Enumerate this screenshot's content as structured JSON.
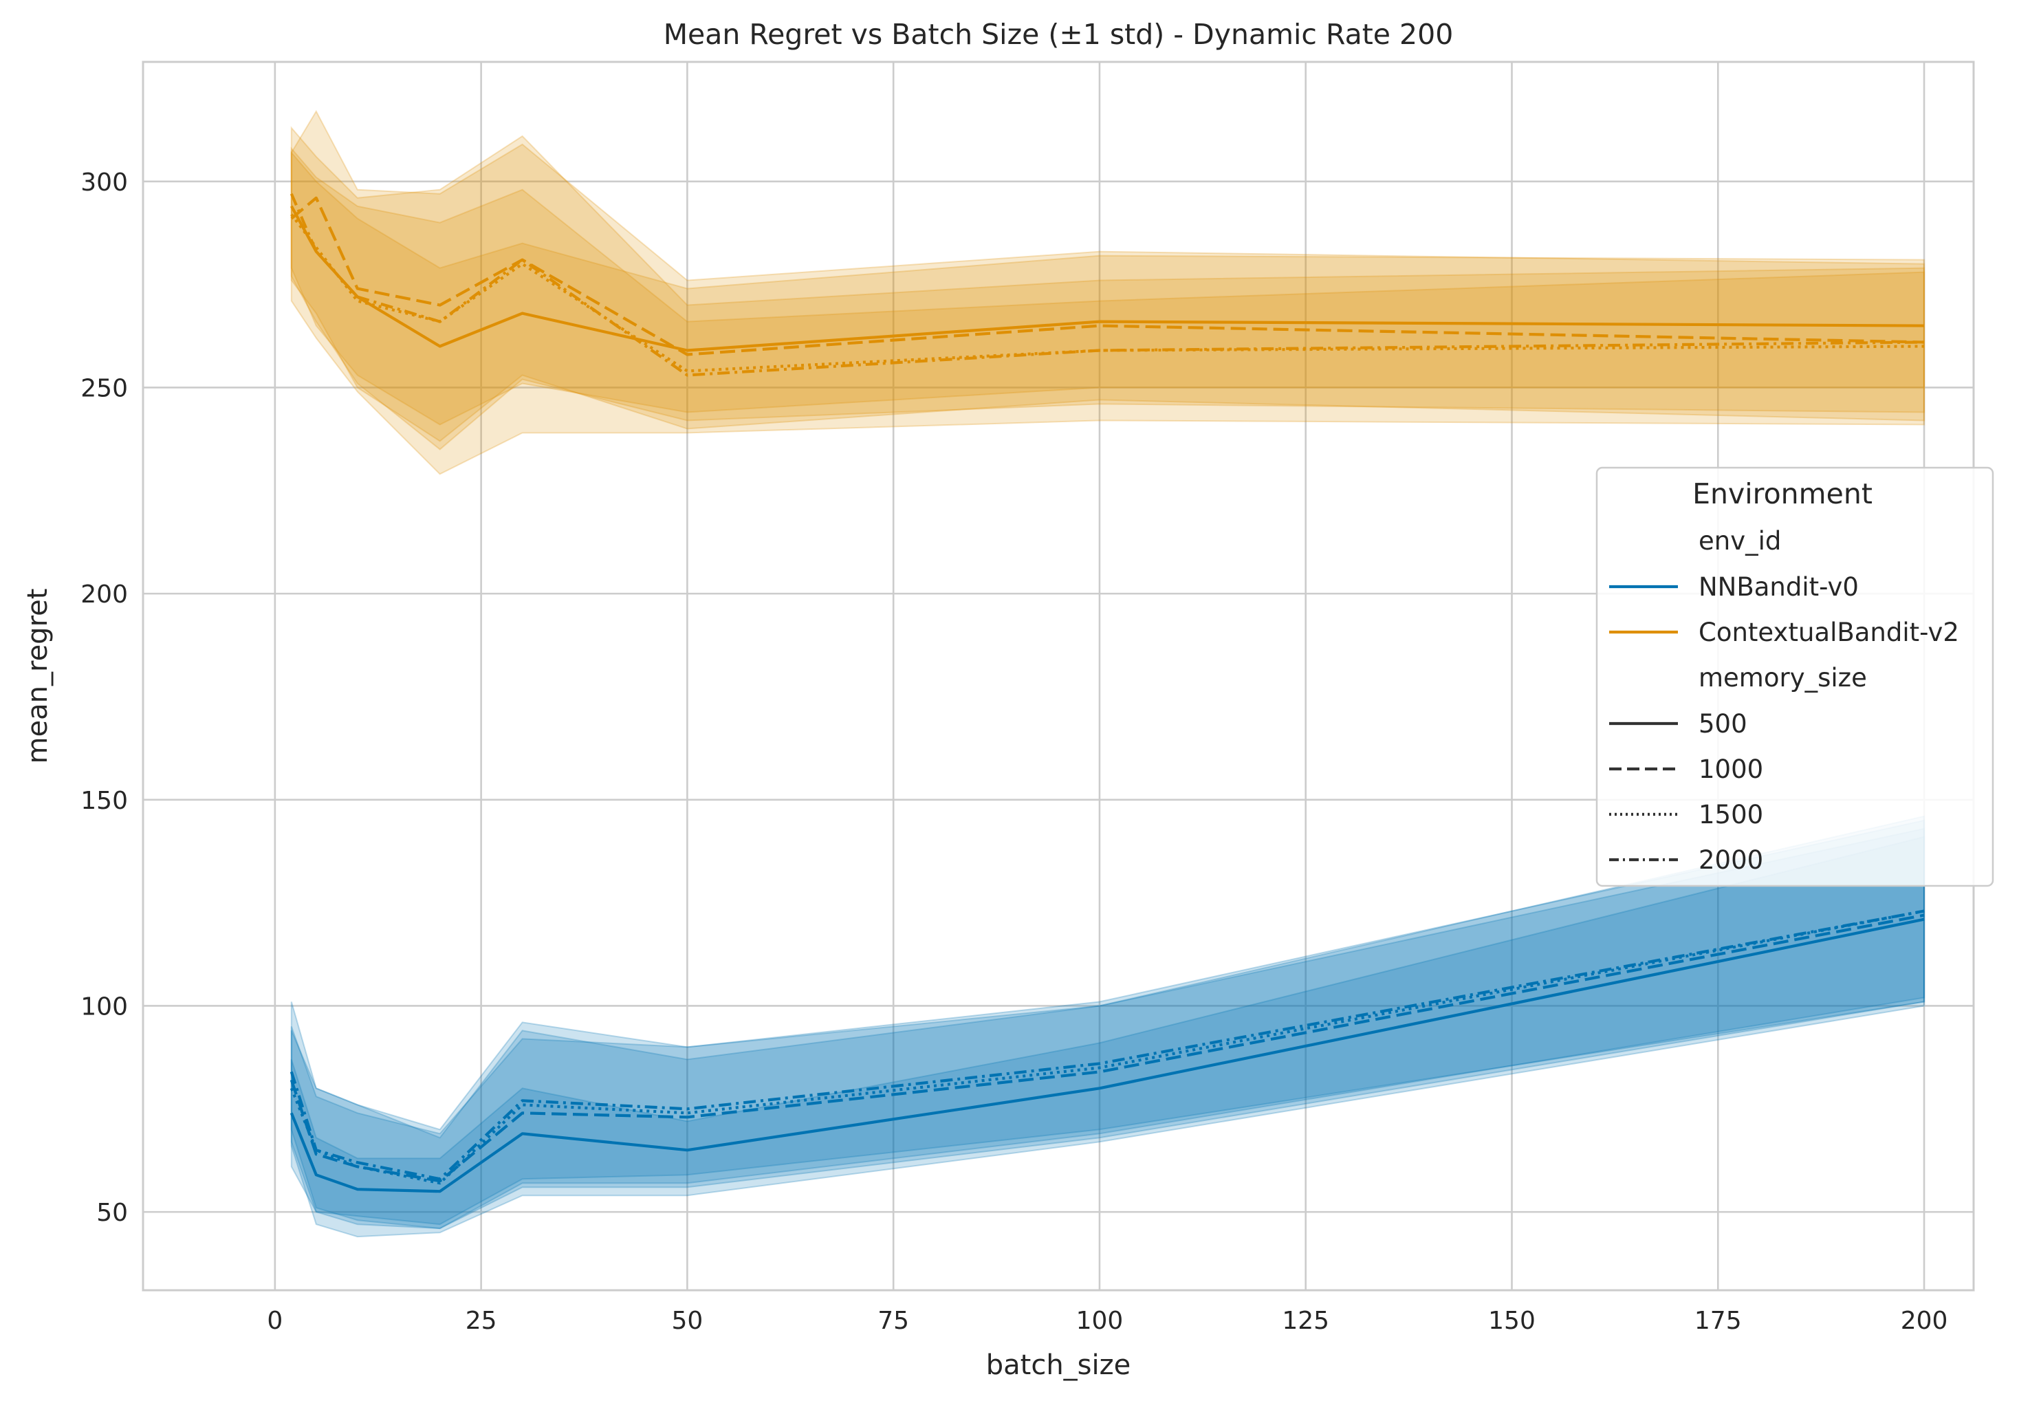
{
  "chart_data": {
    "type": "line",
    "title": "Mean Regret vs Batch Size (±1 std) - Dynamic Rate 200",
    "xlabel": "batch_size",
    "ylabel": "mean_regret",
    "xlim": [
      -16,
      206
    ],
    "ylim": [
      31,
      329
    ],
    "xticks": [
      0,
      25,
      50,
      75,
      100,
      125,
      150,
      175,
      200
    ],
    "yticks": [
      50,
      100,
      150,
      200,
      250,
      300
    ],
    "x": [
      2,
      5,
      10,
      20,
      30,
      50,
      100,
      200
    ],
    "grid": true,
    "legend": {
      "placement": "center-right",
      "title": "Environment",
      "hue_header": "env_id",
      "style_header": "memory_size",
      "hue_entries": [
        {
          "label": "NNBandit-v0",
          "color": "#0173b2"
        },
        {
          "label": "ContextualBandit-v2",
          "color": "#de8f05"
        }
      ],
      "style_entries": [
        {
          "label": "500",
          "dash": "solid"
        },
        {
          "label": "1000",
          "dash": "dashed"
        },
        {
          "label": "1500",
          "dash": "dotted"
        },
        {
          "label": "2000",
          "dash": "dashdot"
        }
      ]
    },
    "series": [
      {
        "env": "NNBandit-v0",
        "memory_size": "500",
        "color": "#0173b2",
        "dash": "solid",
        "values": [
          74,
          59,
          55.5,
          55,
          69,
          65,
          80,
          121
        ],
        "lower": [
          61,
          50,
          49,
          47,
          58,
          59,
          70,
          101
        ],
        "upper": [
          87,
          68,
          63,
          63,
          80,
          72,
          91,
          141
        ]
      },
      {
        "env": "NNBandit-v0",
        "memory_size": "1000",
        "color": "#0173b2",
        "dash": "dashed",
        "values": [
          82,
          64,
          61,
          57.5,
          74,
          73,
          84,
          122
        ],
        "lower": [
          70,
          51,
          48,
          46,
          56,
          56,
          68,
          101
        ],
        "upper": [
          95,
          78,
          74,
          69,
          92,
          90,
          100,
          143
        ]
      },
      {
        "env": "NNBandit-v0",
        "memory_size": "1500",
        "color": "#0173b2",
        "dash": "dotted",
        "values": [
          80,
          65,
          61,
          57,
          76,
          74,
          85,
          123
        ],
        "lower": [
          66,
          47,
          44,
          45,
          54,
          54,
          67,
          100
        ],
        "upper": [
          94,
          80,
          76,
          68,
          94,
          87,
          100,
          146
        ]
      },
      {
        "env": "NNBandit-v0",
        "memory_size": "2000",
        "color": "#0173b2",
        "dash": "dashdot",
        "values": [
          84,
          65,
          62,
          58,
          77,
          75,
          86,
          123
        ],
        "lower": [
          67,
          50,
          47,
          46,
          57,
          57,
          69,
          102
        ],
        "upper": [
          101,
          80,
          76,
          70,
          96,
          90,
          101,
          145
        ]
      },
      {
        "env": "ContextualBandit-v2",
        "memory_size": "500",
        "color": "#de8f05",
        "dash": "solid",
        "values": [
          294,
          283,
          272,
          260,
          268,
          259,
          266,
          265
        ],
        "lower": [
          279,
          265,
          253,
          241,
          251,
          244,
          250,
          250
        ],
        "upper": [
          307,
          300,
          291,
          279,
          285,
          274,
          282,
          281
        ]
      },
      {
        "env": "ContextualBandit-v2",
        "memory_size": "1000",
        "color": "#de8f05",
        "dash": "dashed",
        "values": [
          291,
          296,
          274,
          270,
          281,
          258,
          265,
          261
        ],
        "lower": [
          276,
          268,
          250,
          237,
          253,
          240,
          247,
          242
        ],
        "upper": [
          307,
          317,
          298,
          297,
          309,
          276,
          283,
          280
        ]
      },
      {
        "env": "ContextualBandit-v2",
        "memory_size": "1500",
        "color": "#de8f05",
        "dash": "dotted",
        "values": [
          292,
          284,
          271,
          266,
          280,
          254,
          259,
          260
        ],
        "lower": [
          271,
          262,
          249,
          229,
          239,
          239,
          242,
          241
        ],
        "upper": [
          313,
          306,
          296,
          298,
          311,
          270,
          276,
          279
        ]
      },
      {
        "env": "ContextualBandit-v2",
        "memory_size": "2000",
        "color": "#de8f05",
        "dash": "dashdot",
        "values": [
          297,
          283,
          272,
          266,
          281,
          253,
          259,
          261
        ],
        "lower": [
          277,
          266,
          251,
          235,
          252,
          242,
          246,
          244
        ],
        "upper": [
          308,
          301,
          294,
          290,
          298,
          266,
          271,
          278
        ]
      }
    ]
  }
}
